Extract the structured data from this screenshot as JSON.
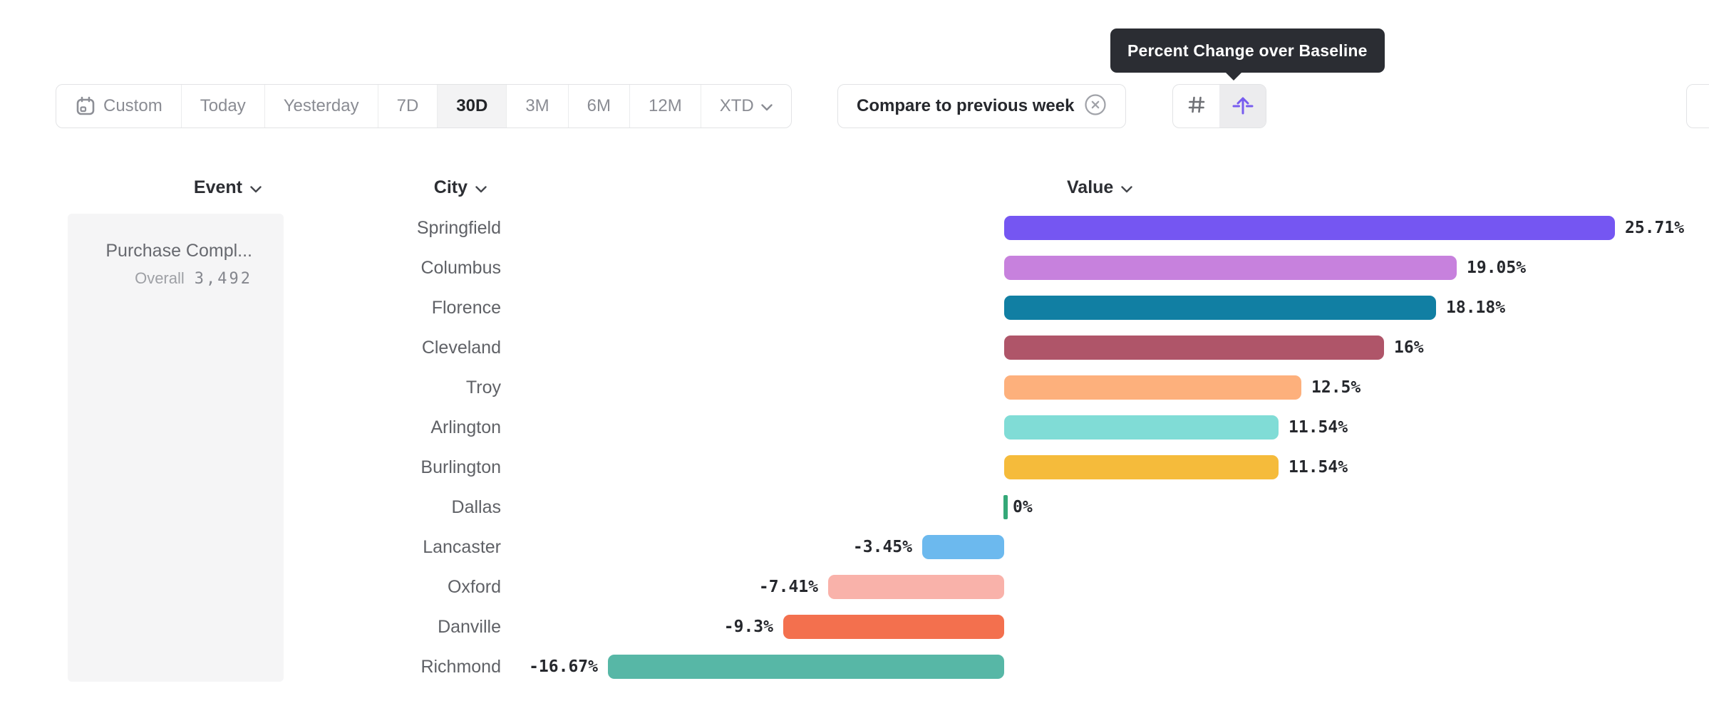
{
  "tooltip": {
    "text": "Percent Change over Baseline"
  },
  "toolbar": {
    "ranges": [
      {
        "label": "Custom"
      },
      {
        "label": "Today"
      },
      {
        "label": "Yesterday"
      },
      {
        "label": "7D"
      },
      {
        "label": "30D",
        "selected": true
      },
      {
        "label": "3M"
      },
      {
        "label": "6M"
      },
      {
        "label": "12M"
      },
      {
        "label": "XTD"
      }
    ],
    "compare_label": "Compare to previous week"
  },
  "columns": {
    "event": "Event",
    "city": "City",
    "value": "Value"
  },
  "event_panel": {
    "title": "Purchase Compl...",
    "overall_label": "Overall",
    "overall_value": "3,492"
  },
  "colors": {
    "accent_purple": "#775CEF",
    "tooltip_bg": "#2B2D33",
    "panel_bg": "#F5F5F6",
    "border": "#E2E3E5"
  },
  "chart_data": {
    "type": "bar",
    "orientation": "horizontal",
    "title": "Percent Change over Baseline",
    "unit": "percent",
    "categories": [
      "Springfield",
      "Columbus",
      "Florence",
      "Cleveland",
      "Troy",
      "Arlington",
      "Burlington",
      "Dallas",
      "Lancaster",
      "Oxford",
      "Danville",
      "Richmond"
    ],
    "values": [
      25.71,
      19.05,
      18.18,
      16,
      12.5,
      11.54,
      11.54,
      0,
      -3.45,
      -7.41,
      -9.3,
      -16.67
    ],
    "value_labels": [
      "25.71%",
      "19.05%",
      "18.18%",
      "16%",
      "12.5%",
      "11.54%",
      "11.54%",
      "0%",
      "-3.45%",
      "-7.41%",
      "-9.3%",
      "-16.67%"
    ],
    "bar_colors": [
      "#7556F2",
      "#C781DD",
      "#117FA3",
      "#AF5569",
      "#FDB07C",
      "#80DCD6",
      "#F5BB3B",
      "#34A878",
      "#6CB9EE",
      "#F9B2AA",
      "#F3704E",
      "#57B7A6"
    ],
    "xlim": [
      -16.67,
      25.71
    ],
    "grid": false,
    "legend": false
  }
}
